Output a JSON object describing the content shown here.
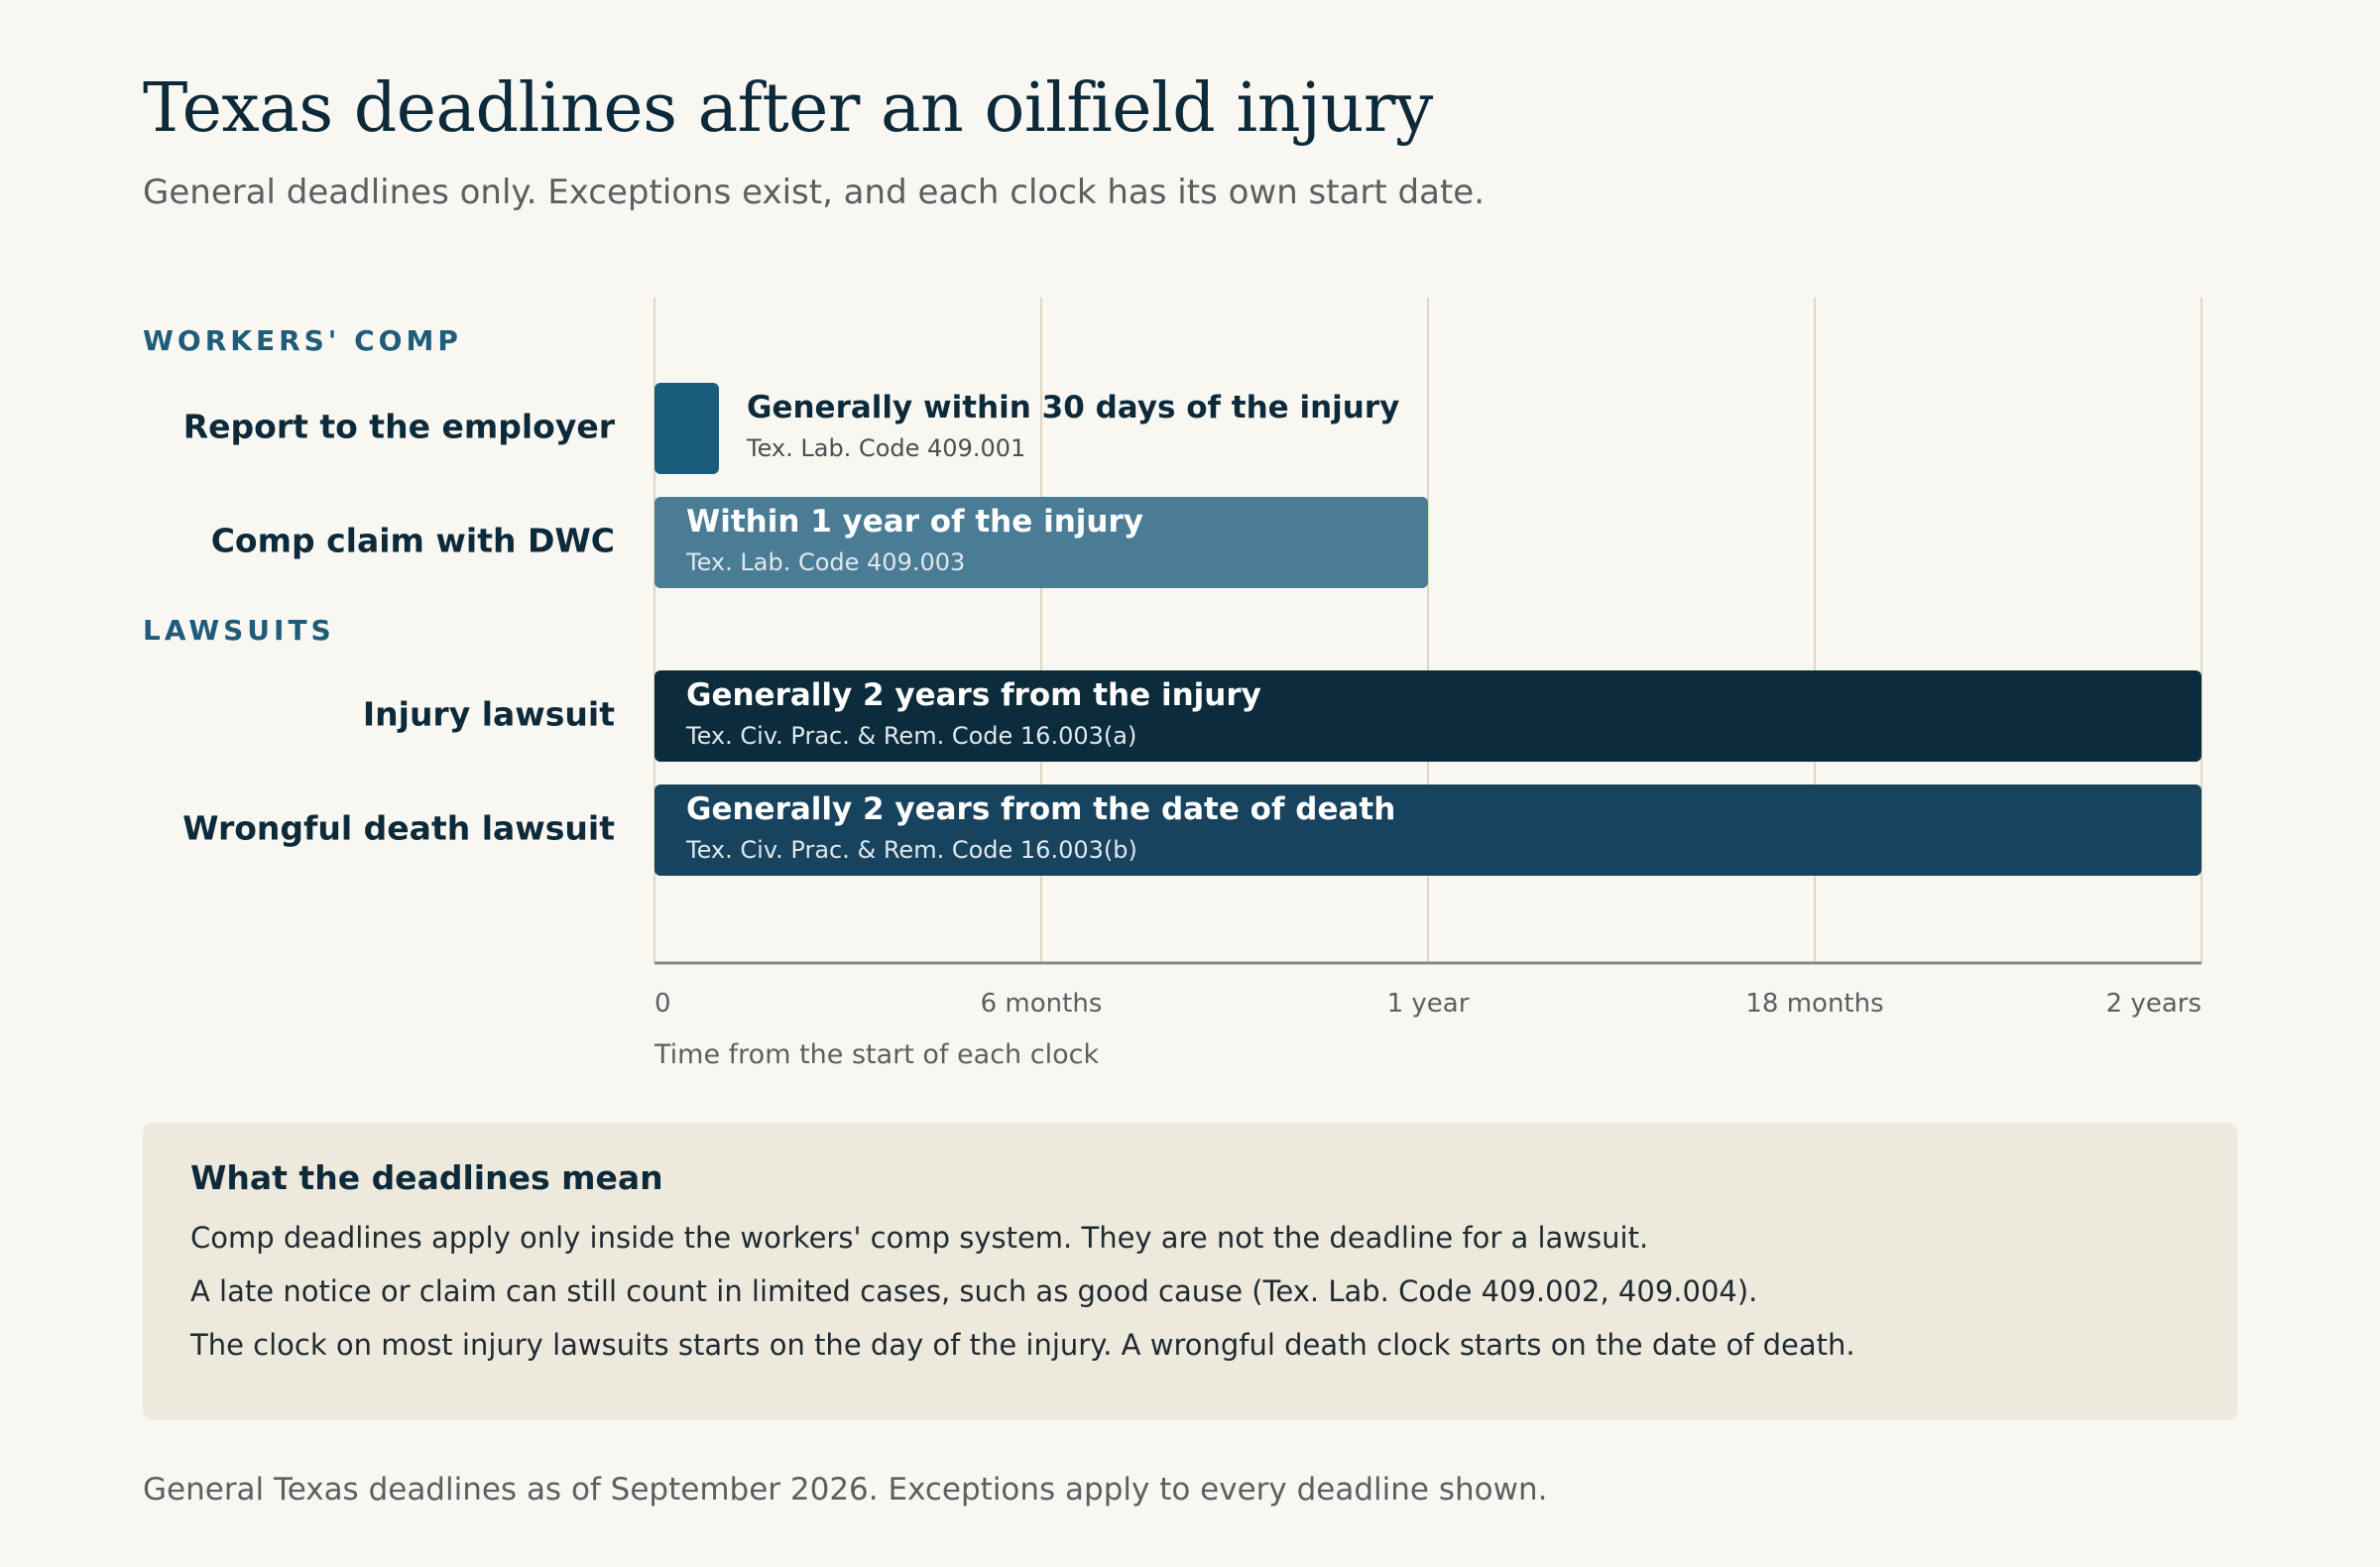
{
  "page": {
    "title": "Texas deadlines after an oilfield injury",
    "subtitle": "General deadlines only. Exceptions exist, and each clock has its own start date.",
    "footnote": "General Texas deadlines as of September 2026. Exceptions apply to every deadline shown."
  },
  "chart_data": {
    "type": "bar",
    "orientation": "horizontal",
    "title": "Texas deadlines after an oilfield injury",
    "subtitle": "General deadlines only. Exceptions exist, and each clock has its own start date.",
    "xlabel": "Time from the start of each clock",
    "xunit": "months",
    "xlim": [
      0,
      24
    ],
    "xticks": [
      {
        "value": 0,
        "label": "0"
      },
      {
        "value": 6,
        "label": "6 months"
      },
      {
        "value": 12,
        "label": "1 year"
      },
      {
        "value": 18,
        "label": "18 months"
      },
      {
        "value": 24,
        "label": "2 years"
      }
    ],
    "grid": true,
    "groups": [
      {
        "name": "WORKERS' COMP",
        "items": [
          {
            "label": "Report to the employer",
            "value": 1,
            "text": "Generally within 30 days of the injury",
            "citation": "Tex. Lab. Code 409.001",
            "color": "#1a5c7c",
            "text_outside": true
          },
          {
            "label": "Comp claim with DWC",
            "value": 12,
            "text": "Within 1 year of the injury",
            "citation": "Tex. Lab. Code 409.003",
            "color": "#4a7c96",
            "text_outside": false
          }
        ]
      },
      {
        "name": "LAWSUITS",
        "items": [
          {
            "label": "Injury lawsuit",
            "value": 24,
            "text": "Generally 2 years from the injury",
            "citation": "Tex. Civ. Prac. & Rem. Code 16.003(a)",
            "color": "#0c2b3b",
            "text_outside": false
          },
          {
            "label": "Wrongful death lawsuit",
            "value": 24,
            "text": "Generally 2 years from the date of death",
            "citation": "Tex. Civ. Prac. & Rem. Code 16.003(b)",
            "color": "#17435e",
            "text_outside": false
          }
        ]
      }
    ]
  },
  "notes": {
    "title": "What the deadlines mean",
    "items": [
      "Comp deadlines apply only inside the workers' comp system. They are not the deadline for a lawsuit.",
      "A late notice or claim can still count in limited cases, such as good cause (Tex. Lab. Code 409.002, 409.004).",
      "The clock on most injury lawsuits starts on the day of the injury. A wrongful death clock starts on the date of death."
    ]
  }
}
